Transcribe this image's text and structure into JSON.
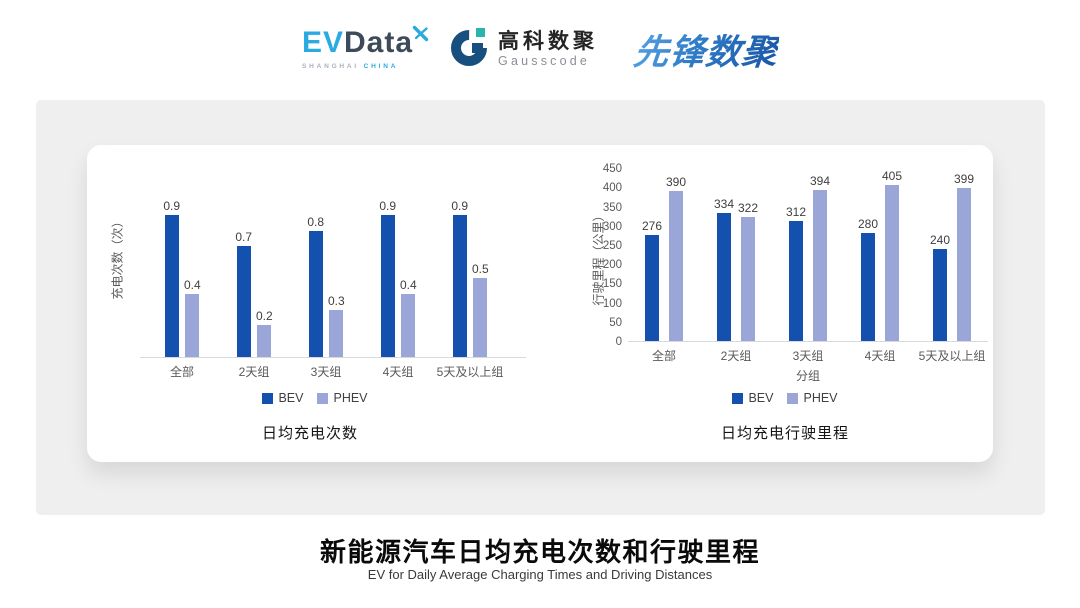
{
  "header": {
    "logos": {
      "evdata": {
        "ev": "EV",
        "data": "Data",
        "sub_left": "SHANGHAI",
        "sub_right": "CHINA"
      },
      "gausscode": {
        "cn": "高科数聚",
        "en": "Gausscode"
      },
      "xianfeng": {
        "text": "先锋数聚"
      }
    }
  },
  "chart_data": [
    {
      "type": "bar",
      "title": "日均充电次数",
      "ylabel": "充电次数（次）",
      "xlabel": "",
      "categories": [
        "全部",
        "2天组",
        "3天组",
        "4天组",
        "5天及以上组"
      ],
      "series": [
        {
          "name": "BEV",
          "values": [
            0.9,
            0.7,
            0.8,
            0.9,
            0.9
          ]
        },
        {
          "name": "PHEV",
          "values": [
            0.4,
            0.2,
            0.3,
            0.4,
            0.5
          ]
        }
      ],
      "yticks": null,
      "grid": false,
      "legend_position": "bottom"
    },
    {
      "type": "bar",
      "title": "日均充电行驶里程",
      "ylabel": "行驶里程（公里）",
      "xlabel": "分组",
      "categories": [
        "全部",
        "2天组",
        "3天组",
        "4天组",
        "5天及以上组"
      ],
      "series": [
        {
          "name": "BEV",
          "values": [
            276,
            334,
            312,
            280,
            240
          ]
        },
        {
          "name": "PHEV",
          "values": [
            390,
            322,
            394,
            405,
            399
          ]
        }
      ],
      "ylim": [
        0,
        450
      ],
      "yticks": [
        0,
        50,
        100,
        150,
        200,
        250,
        300,
        350,
        400,
        450
      ],
      "grid": false,
      "legend_position": "bottom"
    }
  ],
  "footer": {
    "title": "新能源汽车日均充电次数和行驶里程",
    "subtitle": "EV for Daily Average Charging Times and Driving Distances"
  },
  "colors": {
    "bev": "#1450AE",
    "phev": "#9AA5D8",
    "evdata_blue": "#29ABE2",
    "evdata_dark": "#3D4A59",
    "gausscode_dark": "#17507E",
    "gausscode_teal": "#27B5AE",
    "xianfeng_blue": "#2E75C0",
    "panel_gray": "#F0EFEF",
    "axis_line": "#D9D9D9",
    "tick_text": "#595959"
  }
}
